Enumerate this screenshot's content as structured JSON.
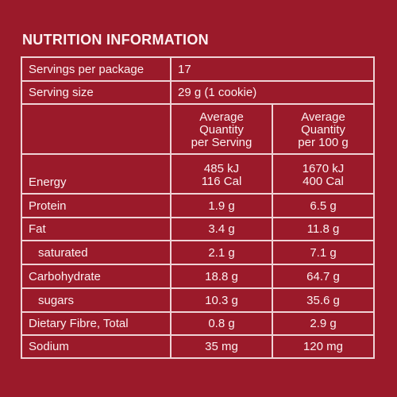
{
  "title": "NUTRITION INFORMATION",
  "servings_per_package": {
    "label": "Servings per package",
    "value": "17"
  },
  "serving_size": {
    "label": "Serving size",
    "value": "29 g (1 cookie)"
  },
  "columns": {
    "per_serving": [
      "Average",
      "Quantity",
      "per Serving"
    ],
    "per_100g": [
      "Average",
      "Quantity",
      "per 100 g"
    ]
  },
  "rows": [
    {
      "label": "Energy",
      "per_serving": [
        "485 kJ",
        "116 Cal"
      ],
      "per_100g": [
        "1670 kJ",
        "400 Cal"
      ]
    },
    {
      "label": "Protein",
      "per_serving": "1.9 g",
      "per_100g": "6.5 g"
    },
    {
      "label": "Fat",
      "per_serving": "3.4 g",
      "per_100g": "11.8 g"
    },
    {
      "label": "saturated",
      "per_serving": "2.1 g",
      "per_100g": "7.1 g"
    },
    {
      "label": "Carbohydrate",
      "per_serving": "18.8 g",
      "per_100g": "64.7 g"
    },
    {
      "label": "sugars",
      "per_serving": "10.3 g",
      "per_100g": "35.6 g"
    },
    {
      "label": "Dietary Fibre, Total",
      "per_serving": "0.8 g",
      "per_100g": "2.9 g"
    },
    {
      "label": "Sodium",
      "per_serving": "35 mg",
      "per_100g": "120 mg"
    }
  ]
}
